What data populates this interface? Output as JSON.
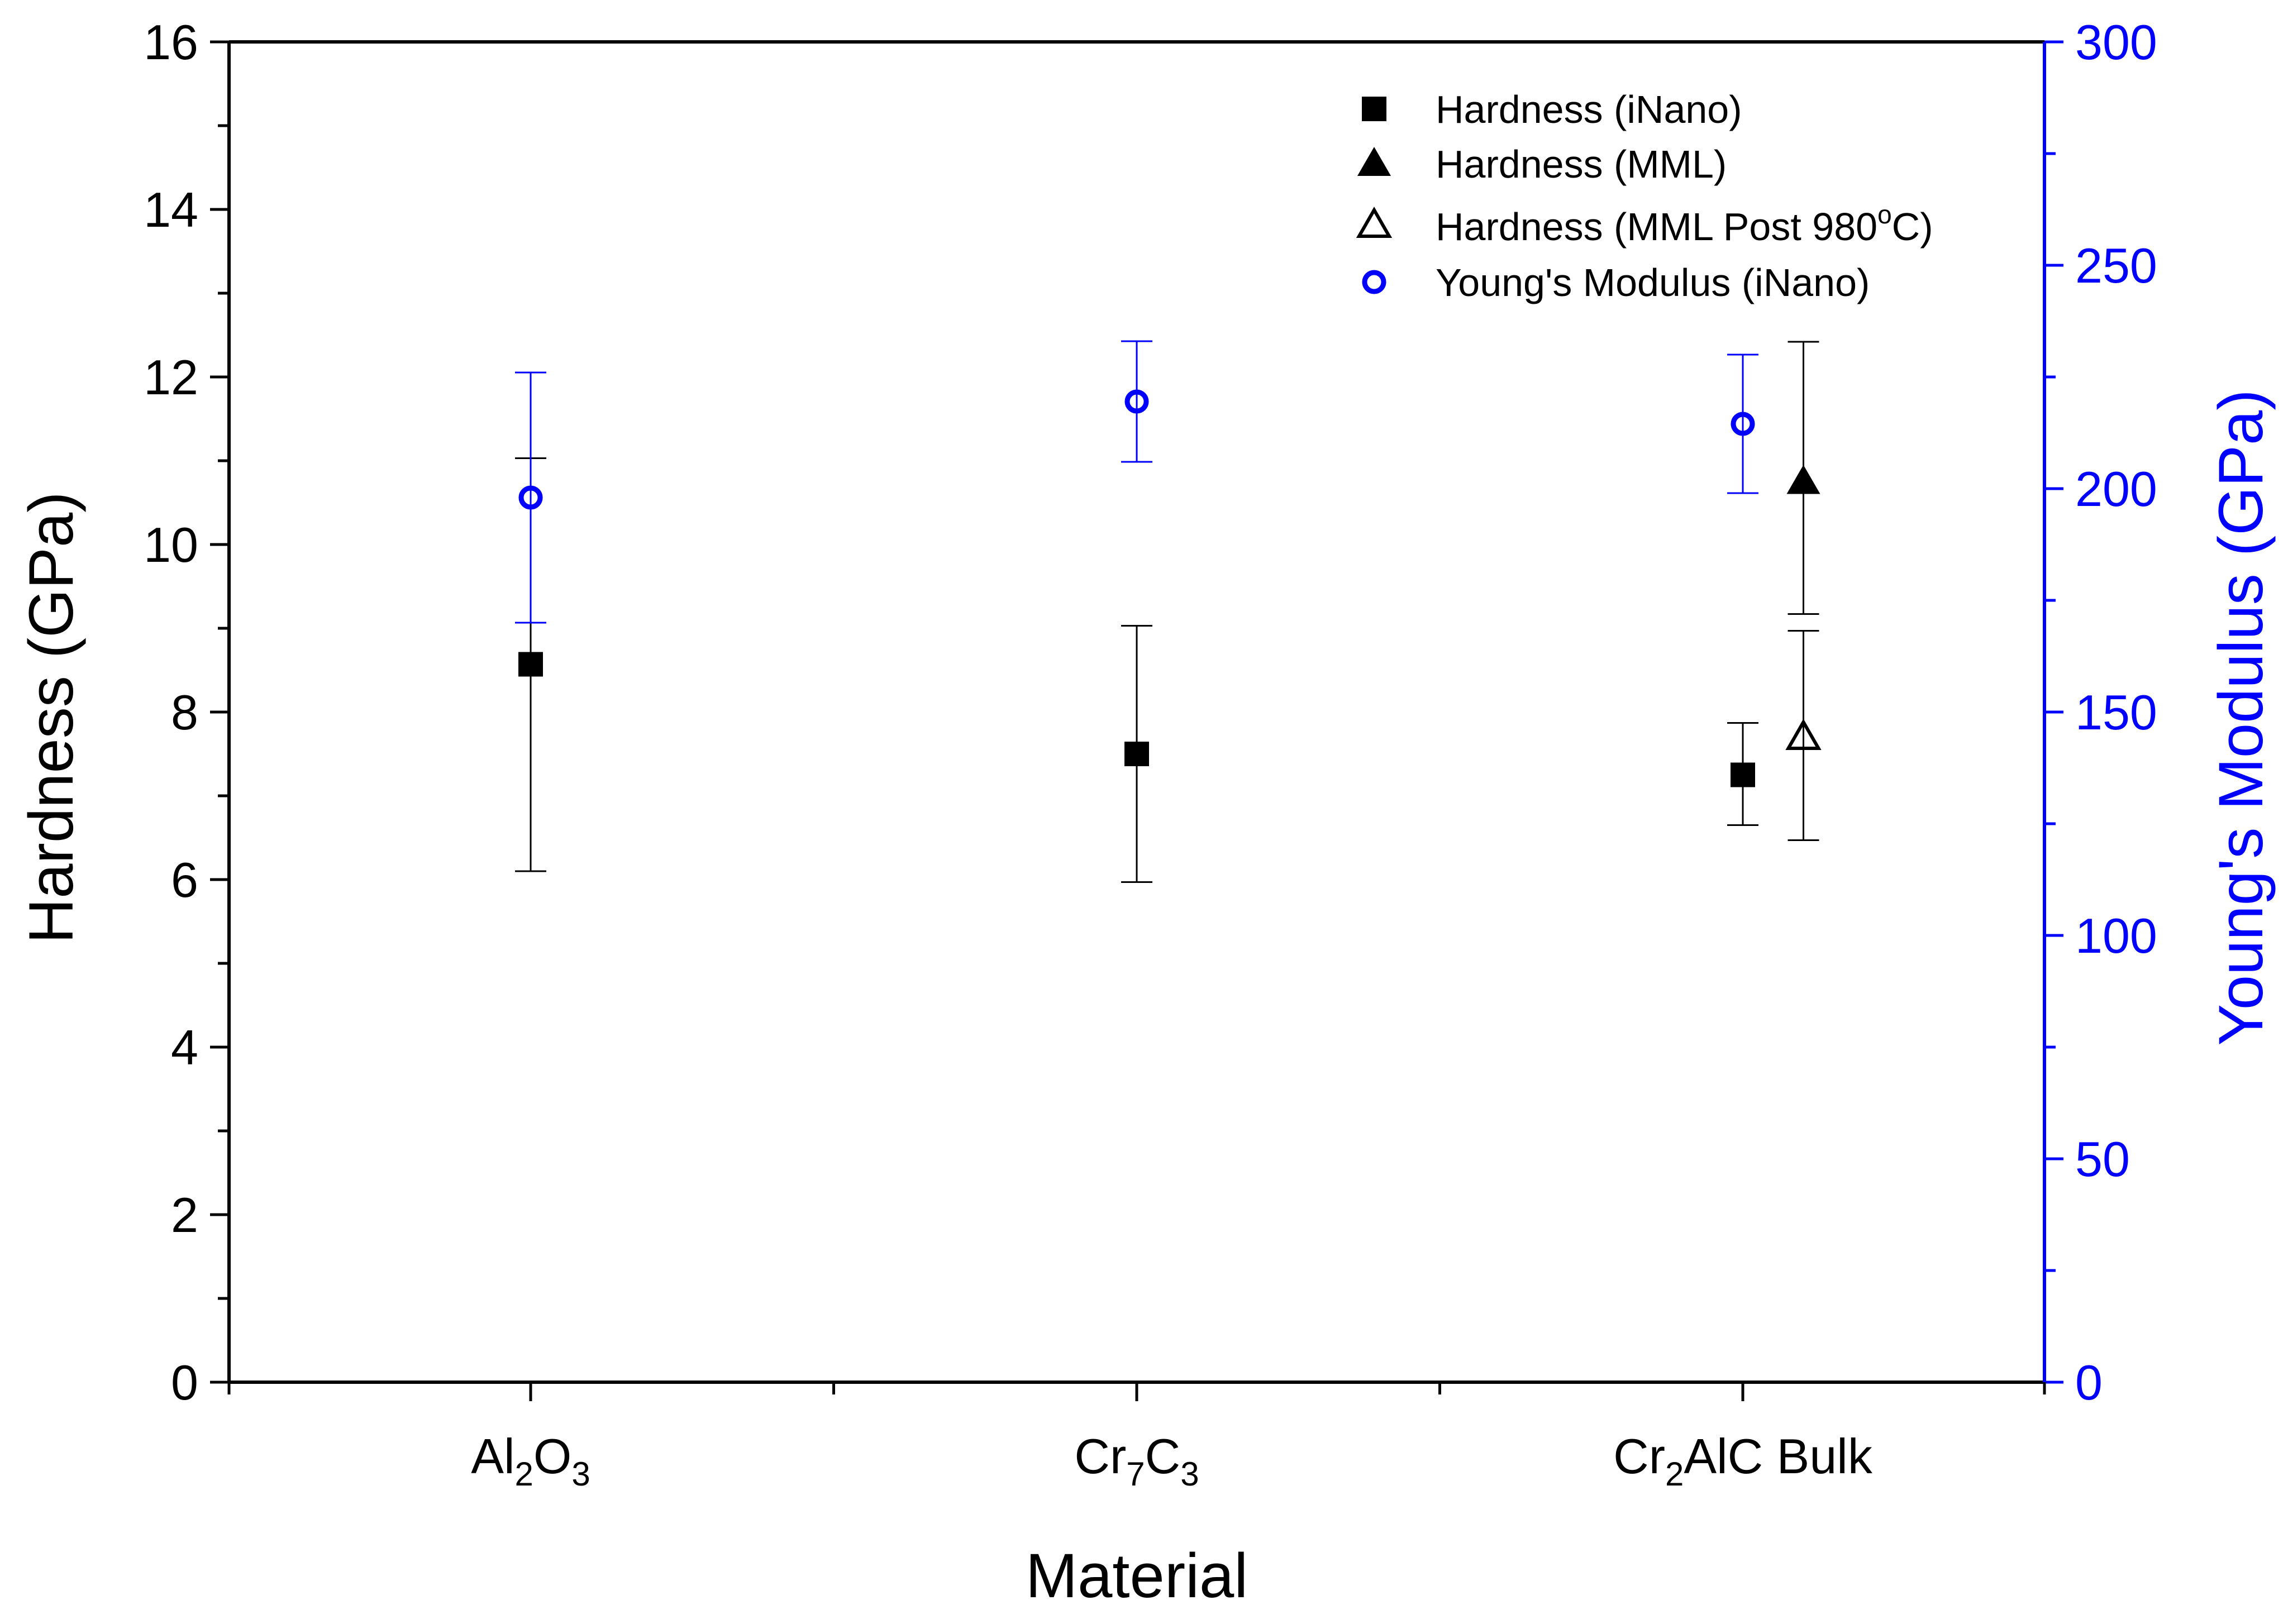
{
  "chart_data": {
    "type": "scatter",
    "title": "",
    "xlabel": "Material",
    "ylabel_left": "Hardness (GPa)",
    "ylabel_right": "Young's Modulus (GPa)",
    "ylim_left": [
      0,
      16
    ],
    "ylim_right": [
      0,
      300
    ],
    "yticks_left": [
      0,
      2,
      4,
      6,
      8,
      10,
      12,
      14,
      16
    ],
    "yticks_right": [
      0,
      50,
      100,
      150,
      200,
      250,
      300
    ],
    "categories": [
      {
        "base": "Al",
        "sub1": "2",
        "mid": "O",
        "sub2": "3",
        "tail": ""
      },
      {
        "base": "Cr",
        "sub1": "7",
        "mid": "C",
        "sub2": "3",
        "tail": ""
      },
      {
        "base": "Cr",
        "sub1": "2",
        "mid": "AlC Bulk",
        "sub2": "",
        "tail": ""
      }
    ],
    "legend_position": "top-right",
    "legend": [
      {
        "label": "Hardness (iNano)",
        "marker": "square-filled",
        "color": "#000000"
      },
      {
        "label": "Hardness (MML)",
        "marker": "triangle-filled",
        "color": "#000000"
      },
      {
        "label_pre": "Hardness (MML Post 980",
        "label_sup": "o",
        "label_post": "C)",
        "marker": "triangle-open",
        "color": "#000000"
      },
      {
        "label": "Young's Modulus (iNano)",
        "marker": "circle-open",
        "color": "#0000ff"
      }
    ],
    "series": [
      {
        "name": "Hardness (iNano)",
        "axis": "left",
        "marker": "square-filled",
        "color": "#000000",
        "points": [
          {
            "category": 0,
            "offset": 0,
            "value": 8.57,
            "err_low": 6.1,
            "err_high": 11.03
          },
          {
            "category": 1,
            "offset": 0,
            "value": 7.5,
            "err_low": 5.97,
            "err_high": 9.03
          },
          {
            "category": 2,
            "offset": 0,
            "value": 7.25,
            "err_low": 6.65,
            "err_high": 7.87
          }
        ]
      },
      {
        "name": "Hardness (MML)",
        "axis": "left",
        "marker": "triangle-filled",
        "color": "#000000",
        "points": [
          {
            "category": 2,
            "offset": 0.1,
            "value": 10.75,
            "err_low": 9.17,
            "err_high": 12.42
          }
        ]
      },
      {
        "name": "Hardness (MML Post 980oC)",
        "axis": "left",
        "marker": "triangle-open",
        "color": "#000000",
        "points": [
          {
            "category": 2,
            "offset": 0.1,
            "value": 7.7,
            "err_low": 6.47,
            "err_high": 8.97
          }
        ]
      },
      {
        "name": "Young's Modulus (iNano)",
        "axis": "right",
        "marker": "circle-open",
        "color": "#0000ff",
        "points": [
          {
            "category": 0,
            "offset": 0,
            "value": 198,
            "err_low": 170,
            "err_high": 226
          },
          {
            "category": 1,
            "offset": 0,
            "value": 219.5,
            "err_low": 206,
            "err_high": 233
          },
          {
            "category": 2,
            "offset": 0,
            "value": 214.5,
            "err_low": 199,
            "err_high": 230
          }
        ]
      }
    ]
  }
}
